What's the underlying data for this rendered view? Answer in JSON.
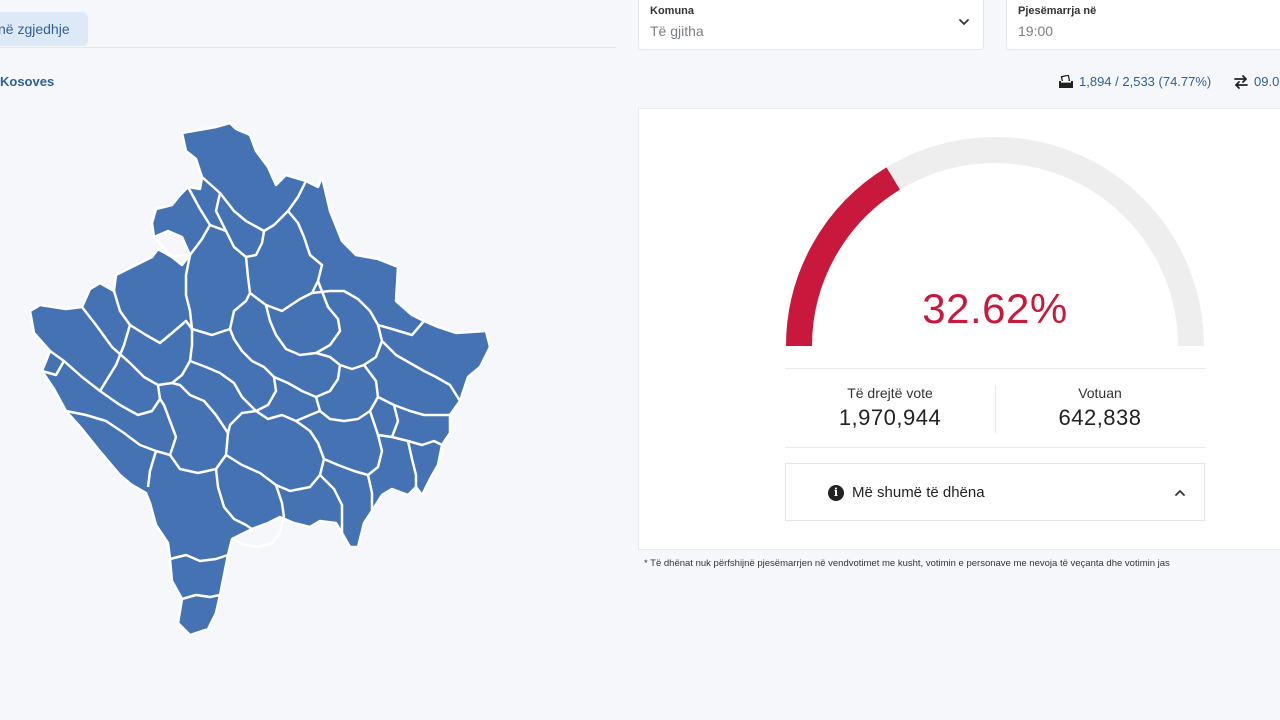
{
  "tab": {
    "label": "në zgjedhje"
  },
  "region": {
    "title": "Kosoves"
  },
  "filters": {
    "municipality": {
      "label": "Komuna",
      "value": "Të gjitha"
    },
    "turnout_time": {
      "label": "Pjesëmarrja në",
      "value": "19:00"
    }
  },
  "stats": {
    "stations": "1,894 / 2,533 (74.77%)",
    "updated": "09.0"
  },
  "gauge": {
    "percent_label": "32.62%",
    "fraction": 0.3262
  },
  "eligible": {
    "label": "Të drejtë vote",
    "value": "1,970,944"
  },
  "voted": {
    "label": "Votuan",
    "value": "642,838"
  },
  "more": {
    "label": "Më shumë të dhëna"
  },
  "footnote": "* Të dhënat nuk përfshijnë pjesëmarrjen në vendvotimet me kusht, votimin e personave me nevoja të veçanta dhe votimin jas",
  "colors": {
    "map_fill": "#4472b3",
    "accent": "#c8193c",
    "link": "#2f5f98"
  },
  "icons": {
    "ballot": "ballot-box-icon",
    "refresh": "arrows-exchange-icon",
    "info": "info-circle-icon",
    "chevron_down": "chevron-down-icon",
    "chevron_up": "chevron-up-icon"
  }
}
